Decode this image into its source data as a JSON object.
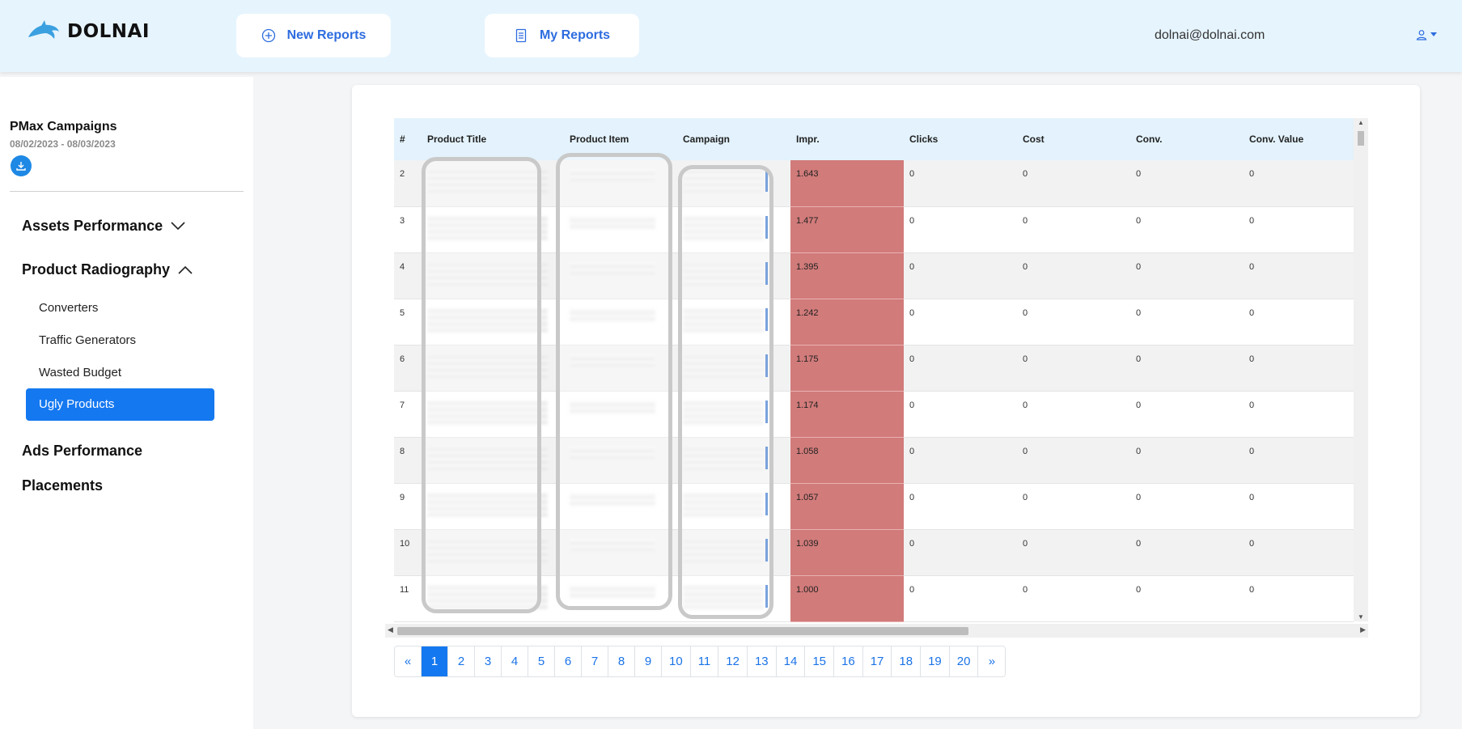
{
  "brand": {
    "name": "DOLNAI",
    "icon": "dolphin-icon"
  },
  "nav": {
    "new_reports": "New Reports",
    "my_reports": "My Reports"
  },
  "user": {
    "email": "dolnai@dolnai.com",
    "icon": "user-icon"
  },
  "sidebar": {
    "campaign_title": "PMax Campaigns",
    "date_range": "08/02/2023 - 08/03/2023",
    "sections": {
      "assets": "Assets Performance",
      "product": "Product Radiography",
      "ads": "Ads Performance",
      "placements": "Placements"
    },
    "product_items": [
      "Converters",
      "Traffic Generators",
      "Wasted Budget",
      "Ugly Products"
    ],
    "active_item": "Ugly Products"
  },
  "table": {
    "columns": [
      "#",
      "Product Title",
      "Product Item",
      "Campaign",
      "Impr.",
      "Clicks",
      "Cost",
      "Conv.",
      "Conv. Value"
    ],
    "rows": [
      {
        "n": "2",
        "impr": "1.643",
        "clicks": "0",
        "cost": "0",
        "conv": "0",
        "conv_value": "0"
      },
      {
        "n": "3",
        "impr": "1.477",
        "clicks": "0",
        "cost": "0",
        "conv": "0",
        "conv_value": "0"
      },
      {
        "n": "4",
        "impr": "1.395",
        "clicks": "0",
        "cost": "0",
        "conv": "0",
        "conv_value": "0"
      },
      {
        "n": "5",
        "impr": "1.242",
        "clicks": "0",
        "cost": "0",
        "conv": "0",
        "conv_value": "0"
      },
      {
        "n": "6",
        "impr": "1.175",
        "clicks": "0",
        "cost": "0",
        "conv": "0",
        "conv_value": "0"
      },
      {
        "n": "7",
        "impr": "1.174",
        "clicks": "0",
        "cost": "0",
        "conv": "0",
        "conv_value": "0"
      },
      {
        "n": "8",
        "impr": "1.058",
        "clicks": "0",
        "cost": "0",
        "conv": "0",
        "conv_value": "0"
      },
      {
        "n": "9",
        "impr": "1.057",
        "clicks": "0",
        "cost": "0",
        "conv": "0",
        "conv_value": "0"
      },
      {
        "n": "10",
        "impr": "1.039",
        "clicks": "0",
        "cost": "0",
        "conv": "0",
        "conv_value": "0"
      },
      {
        "n": "11",
        "impr": "1.000",
        "clicks": "0",
        "cost": "0",
        "conv": "0",
        "conv_value": "0"
      }
    ],
    "highlight_color": "#d17b7a"
  },
  "pagination": {
    "prev": "«",
    "next": "»",
    "pages": [
      "1",
      "2",
      "3",
      "4",
      "5",
      "6",
      "7",
      "8",
      "9",
      "10",
      "11",
      "12",
      "13",
      "14",
      "15",
      "16",
      "17",
      "18",
      "19",
      "20"
    ],
    "current": "1"
  },
  "colors": {
    "accent": "#1478f0",
    "header_bg": "#e6f4fd",
    "link": "#2d6cdf"
  }
}
